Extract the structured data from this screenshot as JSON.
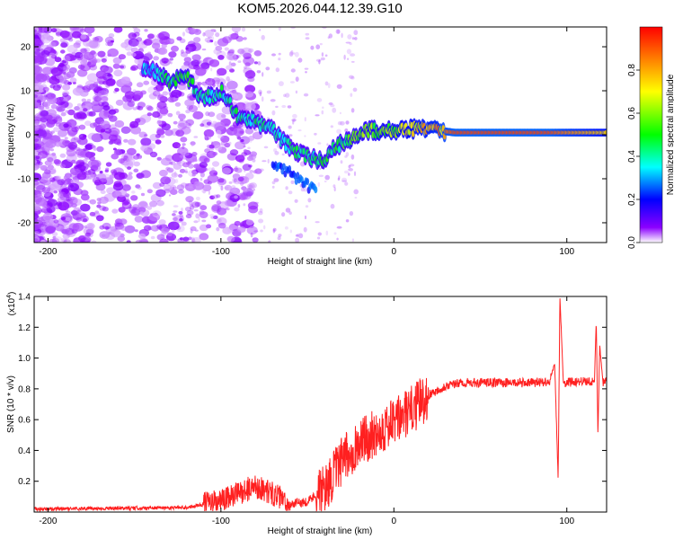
{
  "title": "KOM5.2026.044.12.39.G10",
  "chart_data": [
    {
      "type": "heatmap",
      "name": "spectrogram",
      "xlabel": "Height of straight line (km)",
      "ylabel": "Frequency (Hz)",
      "xlim": [
        -208,
        123
      ],
      "ylim": [
        -24.5,
        24.5
      ],
      "xticks": [
        -200,
        -100,
        0,
        100
      ],
      "yticks": [
        -20,
        -10,
        0,
        10,
        20
      ],
      "colorbar": {
        "label": "Normalized spectral amplitude",
        "range": [
          0,
          1
        ],
        "ticks": [
          "0.0",
          "0.2",
          "0.4",
          "0.6",
          "0.8"
        ],
        "tick_values": [
          0.0,
          0.2,
          0.4,
          0.6,
          0.8
        ],
        "colormap": [
          "#ffffff",
          "#8b00ff",
          "#0000ff",
          "#00ffff",
          "#00ff00",
          "#ffff00",
          "#ff0000"
        ]
      },
      "ridge": [
        {
          "x": -140,
          "y": 15,
          "a": 0.35
        },
        {
          "x": -130,
          "y": 12,
          "a": 0.5
        },
        {
          "x": -120,
          "y": 13,
          "a": 0.55
        },
        {
          "x": -110,
          "y": 8,
          "a": 0.45
        },
        {
          "x": -100,
          "y": 10,
          "a": 0.45
        },
        {
          "x": -90,
          "y": 4,
          "a": 0.45
        },
        {
          "x": -80,
          "y": 3,
          "a": 0.45
        },
        {
          "x": -70,
          "y": 1,
          "a": 0.45
        },
        {
          "x": -60,
          "y": -3,
          "a": 0.45
        },
        {
          "x": -50,
          "y": -5,
          "a": 0.45
        },
        {
          "x": -40,
          "y": -6,
          "a": 0.5
        },
        {
          "x": -35,
          "y": -3,
          "a": 0.5
        },
        {
          "x": -25,
          "y": -1,
          "a": 0.55
        },
        {
          "x": -15,
          "y": 1,
          "a": 0.6
        },
        {
          "x": -5,
          "y": 1,
          "a": 0.65
        },
        {
          "x": 5,
          "y": 1,
          "a": 0.7
        },
        {
          "x": 15,
          "y": 1.5,
          "a": 0.75
        },
        {
          "x": 25,
          "y": 1,
          "a": 0.8
        },
        {
          "x": 35,
          "y": 0.5,
          "a": 0.92
        },
        {
          "x": 90,
          "y": 0.5,
          "a": 0.92
        },
        {
          "x": 100,
          "y": 0.5,
          "a": 0.85
        },
        {
          "x": 123,
          "y": 0.5,
          "a": 0.75
        }
      ]
    },
    {
      "type": "line",
      "name": "snr",
      "xlabel": "Height of straight line (km)",
      "ylabel": "SNR (10 * v/v)",
      "scale_label": "(x10",
      "scale_exp": "4",
      "scale_suffix": ")",
      "xlim": [
        -208,
        123
      ],
      "ylim": [
        0,
        1.4
      ],
      "xticks": [
        -200,
        -100,
        0,
        100
      ],
      "yticks": [
        0.2,
        0.4,
        0.6,
        0.8,
        1.0,
        1.2,
        1.4
      ],
      "ytick_labels": [
        "0.2",
        "0.4",
        "0.6",
        "0.8",
        "1.0",
        "1.2",
        "1.4"
      ],
      "color": "#ff2020",
      "series": [
        {
          "name": "SNR",
          "points": [
            {
              "x": -208,
              "y": 0.02
            },
            {
              "x": -150,
              "y": 0.025
            },
            {
              "x": -120,
              "y": 0.03
            },
            {
              "x": -100,
              "y": 0.07
            },
            {
              "x": -90,
              "y": 0.12
            },
            {
              "x": -80,
              "y": 0.17
            },
            {
              "x": -70,
              "y": 0.12
            },
            {
              "x": -60,
              "y": 0.05
            },
            {
              "x": -50,
              "y": 0.07
            },
            {
              "x": -40,
              "y": 0.15
            },
            {
              "x": -30,
              "y": 0.33
            },
            {
              "x": -20,
              "y": 0.45
            },
            {
              "x": -10,
              "y": 0.52
            },
            {
              "x": 0,
              "y": 0.58
            },
            {
              "x": 10,
              "y": 0.66
            },
            {
              "x": 20,
              "y": 0.76
            },
            {
              "x": 30,
              "y": 0.82
            },
            {
              "x": 40,
              "y": 0.84
            },
            {
              "x": 60,
              "y": 0.84
            },
            {
              "x": 80,
              "y": 0.84
            },
            {
              "x": 90,
              "y": 0.85
            },
            {
              "x": 93,
              "y": 0.96
            },
            {
              "x": 95,
              "y": 0.2
            },
            {
              "x": 96,
              "y": 1.4
            },
            {
              "x": 98,
              "y": 0.84
            },
            {
              "x": 110,
              "y": 0.85
            },
            {
              "x": 116,
              "y": 0.85
            },
            {
              "x": 117,
              "y": 1.25
            },
            {
              "x": 118,
              "y": 0.5
            },
            {
              "x": 119,
              "y": 1.08
            },
            {
              "x": 121,
              "y": 0.84
            },
            {
              "x": 123,
              "y": 0.85
            }
          ]
        }
      ]
    }
  ]
}
